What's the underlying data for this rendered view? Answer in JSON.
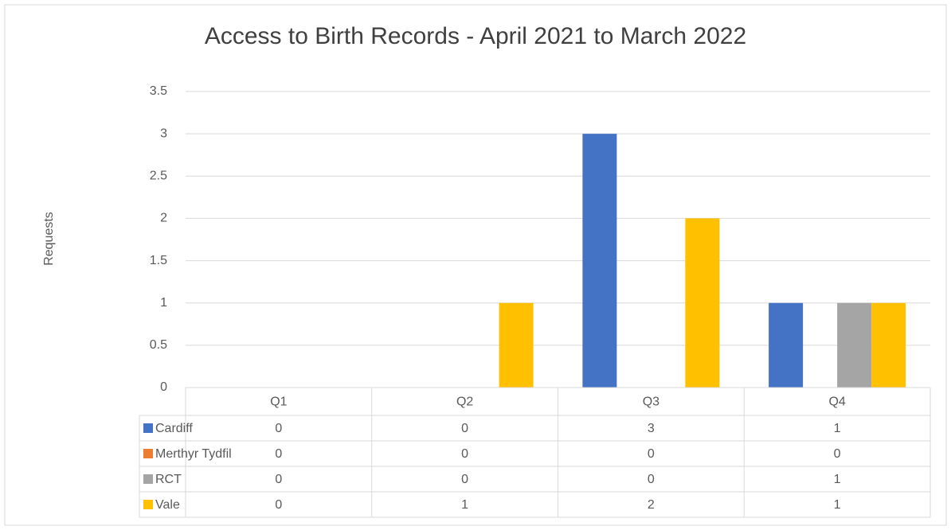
{
  "chart_data": {
    "type": "bar",
    "title": "Access to Birth Records - April 2021 to March 2022",
    "y_label": "Requests",
    "categories": [
      "Q1",
      "Q2",
      "Q3",
      "Q4"
    ],
    "series": [
      {
        "name": "Cardiff",
        "color": "#4472c4",
        "values": [
          0,
          0,
          3,
          1
        ]
      },
      {
        "name": "Merthyr Tydfil",
        "color": "#ed7d31",
        "values": [
          0,
          0,
          0,
          0
        ]
      },
      {
        "name": "RCT",
        "color": "#a5a5a5",
        "values": [
          0,
          0,
          0,
          1
        ]
      },
      {
        "name": "Vale",
        "color": "#ffc000",
        "values": [
          0,
          1,
          2,
          1
        ]
      }
    ],
    "ylim": [
      0,
      3.5
    ],
    "yticks": [
      0,
      0.5,
      1,
      1.5,
      2,
      2.5,
      3,
      3.5
    ],
    "grid": true,
    "data_table": true
  }
}
